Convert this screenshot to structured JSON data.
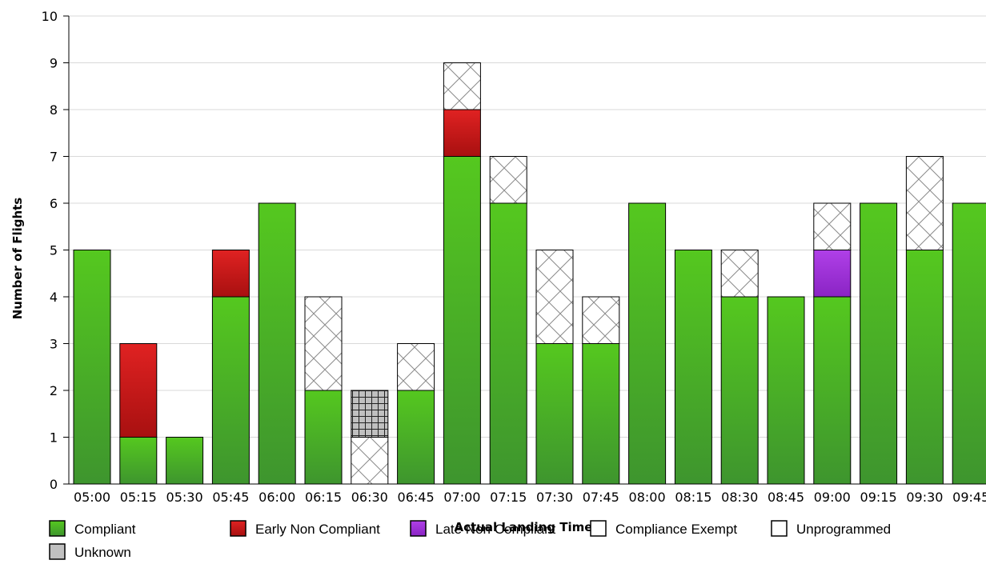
{
  "chart_data": {
    "type": "bar",
    "stacked": true,
    "xlabel": "Actual Landing Time",
    "ylabel": "Number of Flights",
    "ylim": [
      0,
      10
    ],
    "yticks": [
      0,
      1,
      2,
      3,
      4,
      5,
      6,
      7,
      8,
      9,
      10
    ],
    "grid": true,
    "legend_position": "bottom-left",
    "categories": [
      "05:00",
      "05:15",
      "05:30",
      "05:45",
      "06:00",
      "06:15",
      "06:30",
      "06:45",
      "07:00",
      "07:15",
      "07:30",
      "07:45",
      "08:00",
      "08:15",
      "08:30",
      "08:45",
      "09:00",
      "09:15",
      "09:30",
      "09:45"
    ],
    "series": [
      {
        "name": "Compliant",
        "color": "#4bbd1e",
        "pattern": "gradient-green",
        "values": [
          5,
          1,
          1,
          4,
          6,
          2,
          0,
          2,
          7,
          6,
          3,
          3,
          6,
          5,
          4,
          4,
          4,
          6,
          5,
          6
        ]
      },
      {
        "name": "Early Non Compliant",
        "color": "#c81818",
        "pattern": "gradient-red",
        "values": [
          0,
          2,
          0,
          1,
          0,
          0,
          0,
          0,
          1,
          0,
          0,
          0,
          0,
          0,
          0,
          0,
          0,
          0,
          0,
          0
        ]
      },
      {
        "name": "Late Non Compliant",
        "color": "#9b30d9",
        "pattern": "gradient-purple",
        "values": [
          0,
          0,
          0,
          0,
          0,
          0,
          0,
          0,
          0,
          0,
          0,
          0,
          0,
          0,
          0,
          0,
          1,
          0,
          0,
          0
        ]
      },
      {
        "name": "Compliance Exempt",
        "color": "#ffffff",
        "pattern": "none",
        "values": [
          0,
          0,
          0,
          0,
          0,
          0,
          0,
          0,
          0,
          0,
          0,
          0,
          0,
          0,
          0,
          0,
          0,
          0,
          0,
          0
        ]
      },
      {
        "name": "Unprogrammed",
        "color": "#ffffff",
        "pattern": "diamond-hatch",
        "values": [
          0,
          0,
          0,
          0,
          0,
          2,
          1,
          1,
          1,
          1,
          2,
          1,
          0,
          0,
          1,
          0,
          1,
          0,
          2,
          0
        ]
      },
      {
        "name": "Unknown",
        "color": "#c0c0c0",
        "pattern": "grid",
        "values": [
          0,
          0,
          0,
          0,
          0,
          0,
          1,
          0,
          0,
          0,
          0,
          0,
          0,
          0,
          0,
          0,
          0,
          0,
          0,
          0
        ]
      }
    ]
  }
}
